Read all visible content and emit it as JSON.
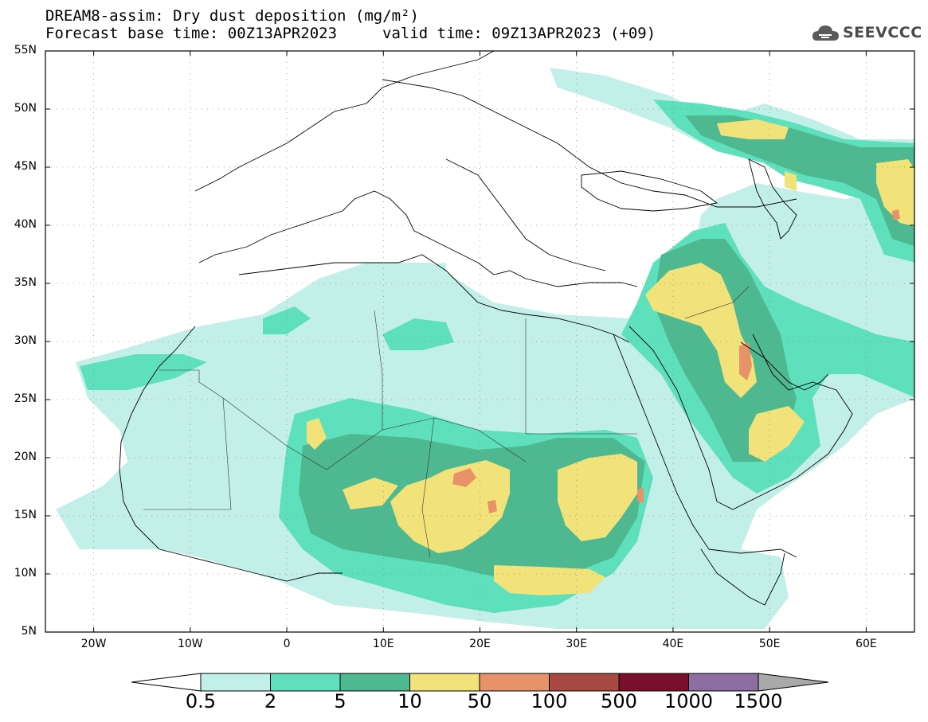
{
  "title_line1": "DREAM8-assim: Dry dust deposition (mg/m²)",
  "title_line2": "Forecast base time: 00Z13APR2023",
  "valid_time": "valid time: 09Z13APR2023 (+09)",
  "logo": {
    "text": "SEEVCCC",
    "icon": "cloud-icon"
  },
  "map": {
    "lon_range": [
      -25,
      65
    ],
    "lat_range": [
      5,
      55
    ],
    "lat_ticks": [
      {
        "value": 55,
        "label": "55N"
      },
      {
        "value": 50,
        "label": "50N"
      },
      {
        "value": 45,
        "label": "45N"
      },
      {
        "value": 40,
        "label": "40N"
      },
      {
        "value": 35,
        "label": "35N"
      },
      {
        "value": 30,
        "label": "30N"
      },
      {
        "value": 25,
        "label": "25N"
      },
      {
        "value": 20,
        "label": "20N"
      },
      {
        "value": 15,
        "label": "15N"
      },
      {
        "value": 10,
        "label": "10N"
      },
      {
        "value": 5,
        "label": "5N"
      }
    ],
    "lon_ticks": [
      {
        "value": -20,
        "label": "20W"
      },
      {
        "value": -10,
        "label": "10W"
      },
      {
        "value": 0,
        "label": "0"
      },
      {
        "value": 10,
        "label": "10E"
      },
      {
        "value": 20,
        "label": "20E"
      },
      {
        "value": 30,
        "label": "30E"
      },
      {
        "value": 40,
        "label": "40E"
      },
      {
        "value": 50,
        "label": "50E"
      },
      {
        "value": 60,
        "label": "60E"
      }
    ]
  },
  "colorbar": {
    "labels": [
      "0.5",
      "2",
      "5",
      "10",
      "50",
      "100",
      "500",
      "1000",
      "1500"
    ],
    "colors": [
      "#c2efe8",
      "#5fe0bd",
      "#4eb891",
      "#f2e27a",
      "#e8926a",
      "#a94a42",
      "#7a0f2c",
      "#8c6ea2",
      "#a9a9a9"
    ]
  },
  "field_colors": {
    "level1": "#c2efe8",
    "level2": "#5fe0bd",
    "level3": "#4eb891",
    "level4": "#f2e27a",
    "level5": "#e8926a"
  }
}
